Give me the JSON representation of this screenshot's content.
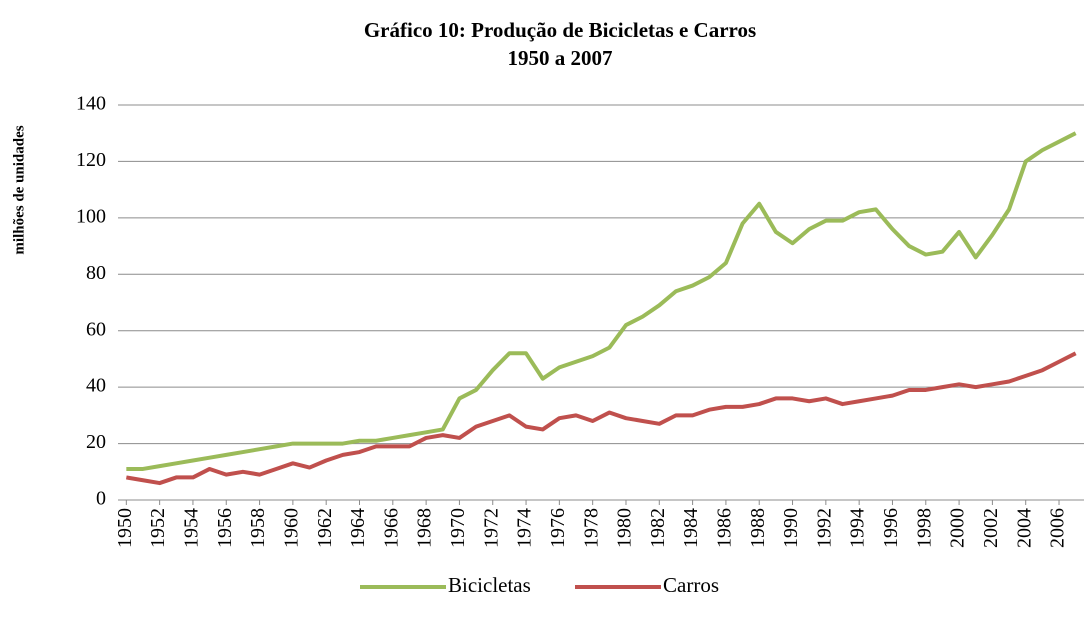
{
  "chart_data": {
    "type": "line",
    "title": "Gráfico 10: Produção de Bicicletas e Carros",
    "subtitle": "1950 a 2007",
    "y_label": "milhões de unidades",
    "x": [
      1950,
      1951,
      1952,
      1953,
      1954,
      1955,
      1956,
      1957,
      1958,
      1959,
      1960,
      1961,
      1962,
      1963,
      1964,
      1965,
      1966,
      1967,
      1968,
      1969,
      1970,
      1971,
      1972,
      1973,
      1974,
      1975,
      1976,
      1977,
      1978,
      1979,
      1980,
      1981,
      1982,
      1983,
      1984,
      1985,
      1986,
      1987,
      1988,
      1989,
      1990,
      1991,
      1992,
      1993,
      1994,
      1995,
      1996,
      1997,
      1998,
      1999,
      2000,
      2001,
      2002,
      2003,
      2004,
      2005,
      2006,
      2007
    ],
    "series": [
      {
        "name": "Bicicletas",
        "color": "#9bbb59",
        "values": [
          11,
          11,
          12,
          13,
          14,
          15,
          16,
          17,
          18,
          19,
          20,
          20,
          20,
          20,
          21,
          21,
          22,
          23,
          24,
          25,
          36,
          39,
          46,
          52,
          52,
          43,
          47,
          49,
          51,
          54,
          62,
          65,
          69,
          74,
          76,
          79,
          84,
          98,
          105,
          95,
          91,
          96,
          99,
          99,
          102,
          103,
          96,
          90,
          87,
          88,
          95,
          86,
          94,
          103,
          120,
          124,
          127,
          130
        ]
      },
      {
        "name": "Carros",
        "color": "#c0504d",
        "values": [
          8,
          7,
          6,
          8,
          8,
          11,
          9,
          10,
          9,
          11,
          13,
          11.5,
          14,
          16,
          17,
          19,
          19,
          19,
          22,
          23,
          22,
          26,
          28,
          30,
          26,
          25,
          29,
          30,
          28,
          31,
          29,
          28,
          27,
          30,
          30,
          32,
          33,
          33,
          34,
          36,
          36,
          35,
          36,
          34,
          35,
          36,
          37,
          39,
          39,
          40,
          41,
          40,
          41,
          42,
          44,
          46,
          49,
          52
        ]
      }
    ],
    "xlim": [
      1949.5,
      2007.5
    ],
    "xticks": [
      1950,
      1952,
      1954,
      1956,
      1958,
      1960,
      1962,
      1964,
      1966,
      1968,
      1970,
      1972,
      1974,
      1976,
      1978,
      1980,
      1982,
      1984,
      1986,
      1988,
      1990,
      1992,
      1994,
      1996,
      1998,
      2000,
      2002,
      2004,
      2006
    ],
    "ylim": [
      0,
      140
    ],
    "yticks": [
      0,
      20,
      40,
      60,
      80,
      100,
      120,
      140
    ],
    "grid": true,
    "legend": "bottom"
  }
}
